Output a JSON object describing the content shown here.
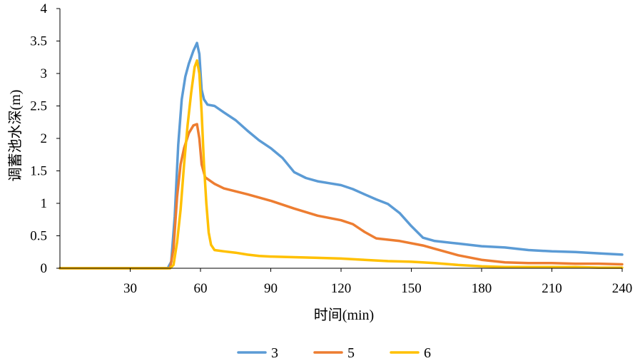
{
  "chart_data": {
    "type": "line",
    "title": "",
    "xlabel": "时间(min)",
    "ylabel": "调蓄池水深(m)",
    "xlim": [
      0,
      240
    ],
    "ylim": [
      0,
      4
    ],
    "xticks": [
      30,
      60,
      90,
      120,
      150,
      180,
      210,
      240
    ],
    "yticks": [
      0,
      0.5,
      1,
      1.5,
      2,
      2.5,
      3,
      3.5,
      4
    ],
    "grid": false,
    "legend_position": "bottom",
    "series": [
      {
        "name": "3",
        "color": "#5B9BD5",
        "points": [
          [
            0,
            0
          ],
          [
            46,
            0
          ],
          [
            47.5,
            0.1
          ],
          [
            49,
            0.8
          ],
          [
            50.5,
            1.9
          ],
          [
            52,
            2.6
          ],
          [
            53.5,
            2.95
          ],
          [
            55,
            3.15
          ],
          [
            57,
            3.35
          ],
          [
            58.5,
            3.47
          ],
          [
            59.5,
            3.3
          ],
          [
            60.5,
            2.75
          ],
          [
            61.5,
            2.6
          ],
          [
            63,
            2.52
          ],
          [
            66,
            2.5
          ],
          [
            70,
            2.4
          ],
          [
            75,
            2.28
          ],
          [
            80,
            2.12
          ],
          [
            85,
            1.97
          ],
          [
            90,
            1.85
          ],
          [
            95,
            1.7
          ],
          [
            100,
            1.48
          ],
          [
            105,
            1.39
          ],
          [
            110,
            1.34
          ],
          [
            115,
            1.31
          ],
          [
            120,
            1.28
          ],
          [
            125,
            1.22
          ],
          [
            130,
            1.14
          ],
          [
            135,
            1.06
          ],
          [
            140,
            0.99
          ],
          [
            145,
            0.85
          ],
          [
            150,
            0.65
          ],
          [
            155,
            0.47
          ],
          [
            160,
            0.42
          ],
          [
            170,
            0.38
          ],
          [
            180,
            0.34
          ],
          [
            190,
            0.32
          ],
          [
            200,
            0.28
          ],
          [
            210,
            0.26
          ],
          [
            220,
            0.25
          ],
          [
            230,
            0.23
          ],
          [
            240,
            0.21
          ]
        ]
      },
      {
        "name": "5",
        "color": "#ED7D31",
        "points": [
          [
            0,
            0
          ],
          [
            47,
            0
          ],
          [
            48.5,
            0.3
          ],
          [
            50,
            1.1
          ],
          [
            51.5,
            1.6
          ],
          [
            53,
            1.85
          ],
          [
            55,
            2.08
          ],
          [
            57,
            2.2
          ],
          [
            58.5,
            2.22
          ],
          [
            59.5,
            2.0
          ],
          [
            60.5,
            1.6
          ],
          [
            62,
            1.4
          ],
          [
            66,
            1.3
          ],
          [
            70,
            1.23
          ],
          [
            80,
            1.14
          ],
          [
            90,
            1.04
          ],
          [
            100,
            0.92
          ],
          [
            110,
            0.81
          ],
          [
            120,
            0.74
          ],
          [
            125,
            0.68
          ],
          [
            130,
            0.56
          ],
          [
            135,
            0.46
          ],
          [
            145,
            0.42
          ],
          [
            155,
            0.35
          ],
          [
            160,
            0.3
          ],
          [
            170,
            0.2
          ],
          [
            180,
            0.13
          ],
          [
            190,
            0.09
          ],
          [
            200,
            0.08
          ],
          [
            210,
            0.08
          ],
          [
            220,
            0.07
          ],
          [
            230,
            0.07
          ],
          [
            240,
            0.06
          ]
        ]
      },
      {
        "name": "6",
        "color": "#FFC000",
        "points": [
          [
            0,
            0
          ],
          [
            47,
            0
          ],
          [
            48.5,
            0.05
          ],
          [
            50,
            0.4
          ],
          [
            51.5,
            0.9
          ],
          [
            53,
            1.6
          ],
          [
            54.5,
            2.2
          ],
          [
            56,
            2.7
          ],
          [
            57.5,
            3.1
          ],
          [
            58.5,
            3.2
          ],
          [
            59.5,
            3.0
          ],
          [
            60.5,
            2.4
          ],
          [
            61.5,
            1.6
          ],
          [
            62.5,
            1.0
          ],
          [
            63.5,
            0.55
          ],
          [
            64.5,
            0.36
          ],
          [
            66,
            0.28
          ],
          [
            70,
            0.26
          ],
          [
            75,
            0.24
          ],
          [
            80,
            0.21
          ],
          [
            85,
            0.19
          ],
          [
            90,
            0.18
          ],
          [
            100,
            0.17
          ],
          [
            110,
            0.16
          ],
          [
            120,
            0.15
          ],
          [
            130,
            0.13
          ],
          [
            140,
            0.11
          ],
          [
            150,
            0.1
          ],
          [
            160,
            0.08
          ],
          [
            170,
            0.05
          ],
          [
            180,
            0.03
          ],
          [
            190,
            0.02
          ],
          [
            200,
            0.02
          ],
          [
            210,
            0.02
          ],
          [
            220,
            0.02
          ],
          [
            230,
            0.01
          ],
          [
            240,
            0.01
          ]
        ]
      }
    ]
  }
}
